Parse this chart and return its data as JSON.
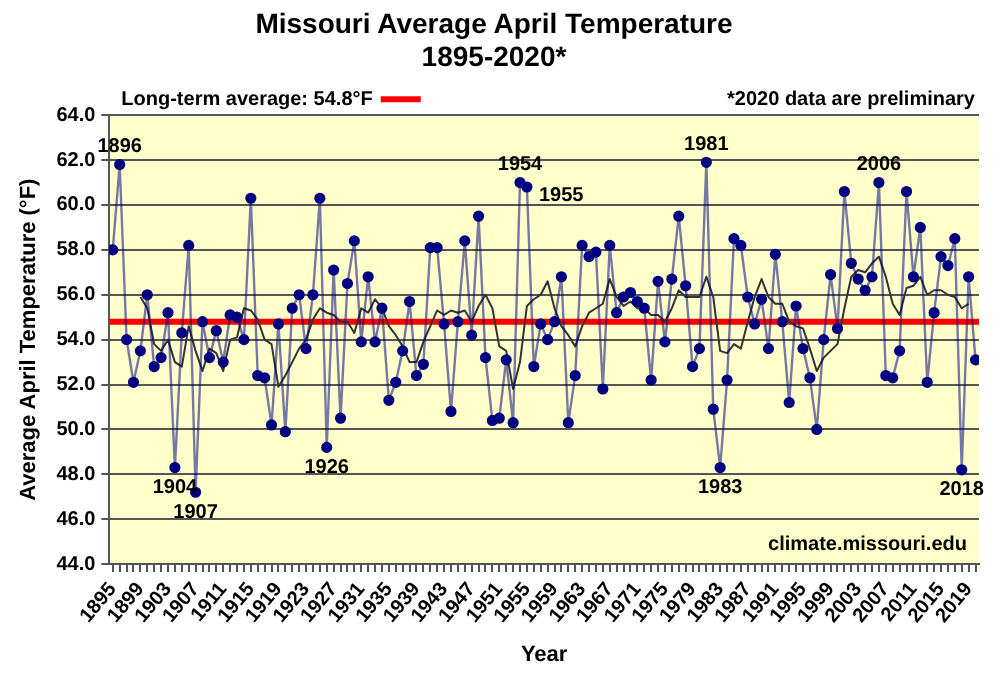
{
  "chart_data": {
    "type": "line",
    "title": "Missouri Average April Temperature",
    "subtitle": "1895-2020*",
    "xlabel": "Year",
    "ylabel": "Average April Temperature (°F)",
    "x": [
      1895,
      1896,
      1897,
      1898,
      1899,
      1900,
      1901,
      1902,
      1903,
      1904,
      1905,
      1906,
      1907,
      1908,
      1909,
      1910,
      1911,
      1912,
      1913,
      1914,
      1915,
      1916,
      1917,
      1918,
      1919,
      1920,
      1921,
      1922,
      1923,
      1924,
      1925,
      1926,
      1927,
      1928,
      1929,
      1930,
      1931,
      1932,
      1933,
      1934,
      1935,
      1936,
      1937,
      1938,
      1939,
      1940,
      1941,
      1942,
      1943,
      1944,
      1945,
      1946,
      1947,
      1948,
      1949,
      1950,
      1951,
      1952,
      1953,
      1954,
      1955,
      1956,
      1957,
      1958,
      1959,
      1960,
      1961,
      1962,
      1963,
      1964,
      1965,
      1966,
      1967,
      1968,
      1969,
      1970,
      1971,
      1972,
      1973,
      1974,
      1975,
      1976,
      1977,
      1978,
      1979,
      1980,
      1981,
      1982,
      1983,
      1984,
      1985,
      1986,
      1987,
      1988,
      1989,
      1990,
      1991,
      1992,
      1993,
      1994,
      1995,
      1996,
      1997,
      1998,
      1999,
      2000,
      2001,
      2002,
      2003,
      2004,
      2005,
      2006,
      2007,
      2008,
      2009,
      2010,
      2011,
      2012,
      2013,
      2014,
      2015,
      2016,
      2017,
      2018,
      2019,
      2020
    ],
    "series": [
      {
        "color": "#000080",
        "marker": "circle",
        "values": [
          58.0,
          61.8,
          54.0,
          52.1,
          53.5,
          56.0,
          52.8,
          53.2,
          55.2,
          48.3,
          54.3,
          58.2,
          47.2,
          54.8,
          53.2,
          54.4,
          53.0,
          55.1,
          55.0,
          54.0,
          60.3,
          52.4,
          52.3,
          50.2,
          54.7,
          49.9,
          55.4,
          56.0,
          53.6,
          56.0,
          60.3,
          49.2,
          57.1,
          50.5,
          56.5,
          58.4,
          53.9,
          56.8,
          53.9,
          55.4,
          51.3,
          52.1,
          53.5,
          55.7,
          52.4,
          52.9,
          58.1,
          58.1,
          54.7,
          50.8,
          54.8,
          58.4,
          54.2,
          59.5,
          53.2,
          50.4,
          50.5,
          53.1,
          50.3,
          61.0,
          60.8,
          52.8,
          54.7,
          54.0,
          54.8,
          56.8,
          50.3,
          52.4,
          58.2,
          57.7,
          57.9,
          51.8,
          58.2,
          55.2,
          55.9,
          56.1,
          55.7,
          55.4,
          52.2,
          56.6,
          53.9,
          56.7,
          59.5,
          56.4,
          52.8,
          53.6,
          61.9,
          50.9,
          48.3,
          52.2,
          58.5,
          58.2,
          55.9,
          54.7,
          55.8,
          53.6,
          57.8,
          54.8,
          51.2,
          55.5,
          53.6,
          52.3,
          50.0,
          54.0,
          56.9,
          54.5,
          60.6,
          57.4,
          56.7,
          56.2,
          56.8,
          61.0,
          52.4,
          52.3,
          53.5,
          60.6,
          56.8,
          59.0,
          52.1,
          55.2,
          57.7,
          57.3,
          58.5,
          48.2,
          56.8,
          53.1
        ]
      },
      {
        "color": "#333333",
        "marker": "none",
        "x": [
          1899,
          1900,
          1901,
          1902,
          1903,
          1904,
          1905,
          1906,
          1907,
          1908,
          1909,
          1910,
          1911,
          1912,
          1913,
          1914,
          1915,
          1916,
          1917,
          1918,
          1919,
          1920,
          1921,
          1922,
          1923,
          1924,
          1925,
          1926,
          1927,
          1928,
          1929,
          1930,
          1931,
          1932,
          1933,
          1934,
          1935,
          1936,
          1937,
          1938,
          1939,
          1940,
          1941,
          1942,
          1943,
          1944,
          1945,
          1946,
          1947,
          1948,
          1949,
          1950,
          1951,
          1952,
          1953,
          1954,
          1955,
          1956,
          1957,
          1958,
          1959,
          1960,
          1961,
          1962,
          1963,
          1964,
          1965,
          1966,
          1967,
          1968,
          1969,
          1970,
          1971,
          1972,
          1973,
          1974,
          1975,
          1976,
          1977,
          1978,
          1979,
          1980,
          1981,
          1982,
          1983,
          1984,
          1985,
          1986,
          1987,
          1988,
          1989,
          1990,
          1991,
          1992,
          1993,
          1994,
          1995,
          1996,
          1997,
          1998,
          1999,
          2000,
          2001,
          2002,
          2003,
          2004,
          2005,
          2006,
          2007,
          2008,
          2009,
          2010,
          2011,
          2012,
          2013,
          2014,
          2015,
          2016,
          2017,
          2018,
          2019
        ],
        "values": [
          55.9,
          55.4,
          53.8,
          53.5,
          54.0,
          53.0,
          52.8,
          54.6,
          53.5,
          52.6,
          53.6,
          53.4,
          52.6,
          54.0,
          54.1,
          55.4,
          55.3,
          54.9,
          54.0,
          53.8,
          51.9,
          52.4,
          53.0,
          53.6,
          54.0,
          54.9,
          55.4,
          55.2,
          55.1,
          54.8,
          54.8,
          54.3,
          55.4,
          55.2,
          55.8,
          55.4,
          54.6,
          54.2,
          53.7,
          53.0,
          53.0,
          53.9,
          54.6,
          55.3,
          55.1,
          55.3,
          55.2,
          55.3,
          54.8,
          55.5,
          56.0,
          55.4,
          53.7,
          53.5,
          51.8,
          53.0,
          55.5,
          55.8,
          56.0,
          56.6,
          55.4,
          54.6,
          54.2,
          53.7,
          54.6,
          55.2,
          55.4,
          55.6,
          56.7,
          55.9,
          55.5,
          55.7,
          55.4,
          55.4,
          55.1,
          55.1,
          54.8,
          55.4,
          56.2,
          55.9,
          55.9,
          55.9,
          56.8,
          55.9,
          53.5,
          53.4,
          53.8,
          53.6,
          54.8,
          55.9,
          56.7,
          55.9,
          55.6,
          55.6,
          54.8,
          54.6,
          54.5,
          53.6,
          52.6,
          53.2,
          53.5,
          53.8,
          55.4,
          56.8,
          57.1,
          57.0,
          57.4,
          57.7,
          56.8,
          55.6,
          55.1,
          56.3,
          56.4,
          56.8,
          56.0,
          56.2,
          56.2,
          56.0,
          55.9,
          55.4,
          55.6
        ]
      }
    ],
    "xlim": [
      1894.5,
      2020.5
    ],
    "xticks": [
      1895,
      {
        "value": 1896,
        "label": null
      },
      {
        "value": 1897,
        "label": null
      },
      {
        "value": 1898,
        "label": null
      },
      1899,
      {
        "value": 1900,
        "label": null
      },
      {
        "value": 1901,
        "label": null
      },
      {
        "value": 1902,
        "label": null
      },
      1903,
      {
        "value": 1904,
        "label": null
      },
      {
        "value": 1905,
        "label": null
      },
      {
        "value": 1906,
        "label": null
      },
      1907,
      {
        "value": 1908,
        "label": null
      },
      {
        "value": 1909,
        "label": null
      },
      {
        "value": 1910,
        "label": null
      },
      1911,
      {
        "value": 1912,
        "label": null
      },
      {
        "value": 1913,
        "label": null
      },
      {
        "value": 1914,
        "label": null
      },
      1915,
      {
        "value": 1916,
        "label": null
      },
      {
        "value": 1917,
        "label": null
      },
      {
        "value": 1918,
        "label": null
      },
      1919,
      {
        "value": 1920,
        "label": null
      },
      {
        "value": 1921,
        "label": null
      },
      {
        "value": 1922,
        "label": null
      },
      1923,
      {
        "value": 1924,
        "label": null
      },
      {
        "value": 1925,
        "label": null
      },
      {
        "value": 1926,
        "label": null
      },
      1927,
      {
        "value": 1928,
        "label": null
      },
      {
        "value": 1929,
        "label": null
      },
      {
        "value": 1930,
        "label": null
      },
      1931,
      {
        "value": 1932,
        "label": null
      },
      {
        "value": 1933,
        "label": null
      },
      {
        "value": 1934,
        "label": null
      },
      1935,
      {
        "value": 1936,
        "label": null
      },
      {
        "value": 1937,
        "label": null
      },
      {
        "value": 1938,
        "label": null
      },
      1939,
      {
        "value": 1940,
        "label": null
      },
      {
        "value": 1941,
        "label": null
      },
      {
        "value": 1942,
        "label": null
      },
      1943,
      {
        "value": 1944,
        "label": null
      },
      {
        "value": 1945,
        "label": null
      },
      {
        "value": 1946,
        "label": null
      },
      1947,
      {
        "value": 1948,
        "label": null
      },
      {
        "value": 1949,
        "label": null
      },
      {
        "value": 1950,
        "label": null
      },
      1951,
      {
        "value": 1952,
        "label": null
      },
      {
        "value": 1953,
        "label": null
      },
      {
        "value": 1954,
        "label": null
      },
      1955,
      {
        "value": 1956,
        "label": null
      },
      {
        "value": 1957,
        "label": null
      },
      {
        "value": 1958,
        "label": null
      },
      1959,
      {
        "value": 1960,
        "label": null
      },
      {
        "value": 1961,
        "label": null
      },
      {
        "value": 1962,
        "label": null
      },
      1963,
      {
        "value": 1964,
        "label": null
      },
      {
        "value": 1965,
        "label": null
      },
      {
        "value": 1966,
        "label": null
      },
      1967,
      {
        "value": 1968,
        "label": null
      },
      {
        "value": 1969,
        "label": null
      },
      {
        "value": 1970,
        "label": null
      },
      1971,
      {
        "value": 1972,
        "label": null
      },
      {
        "value": 1973,
        "label": null
      },
      {
        "value": 1974,
        "label": null
      },
      1975,
      {
        "value": 1976,
        "label": null
      },
      {
        "value": 1977,
        "label": null
      },
      {
        "value": 1978,
        "label": null
      },
      1979,
      {
        "value": 1980,
        "label": null
      },
      {
        "value": 1981,
        "label": null
      },
      {
        "value": 1982,
        "label": null
      },
      1983,
      {
        "value": 1984,
        "label": null
      },
      {
        "value": 1985,
        "label": null
      },
      {
        "value": 1986,
        "label": null
      },
      1987,
      {
        "value": 1988,
        "label": null
      },
      {
        "value": 1989,
        "label": null
      },
      {
        "value": 1990,
        "label": null
      },
      1991,
      {
        "value": 1992,
        "label": null
      },
      {
        "value": 1993,
        "label": null
      },
      {
        "value": 1994,
        "label": null
      },
      1995,
      {
        "value": 1996,
        "label": null
      },
      {
        "value": 1997,
        "label": null
      },
      {
        "value": 1998,
        "label": null
      },
      1999,
      {
        "value": 2000,
        "label": null
      },
      {
        "value": 2001,
        "label": null
      },
      {
        "value": 2002,
        "label": null
      },
      2003,
      {
        "value": 2004,
        "label": null
      },
      {
        "value": 2005,
        "label": null
      },
      {
        "value": 2006,
        "label": null
      },
      2007,
      {
        "value": 2008,
        "label": null
      },
      {
        "value": 2009,
        "label": null
      },
      {
        "value": 2010,
        "label": null
      },
      2011,
      {
        "value": 2012,
        "label": null
      },
      {
        "value": 2013,
        "label": null
      },
      {
        "value": 2014,
        "label": null
      },
      2015,
      {
        "value": 2016,
        "label": null
      },
      {
        "value": 2017,
        "label": null
      },
      {
        "value": 2018,
        "label": null
      },
      2019,
      {
        "value": 2020,
        "label": null
      }
    ],
    "ylim": [
      44,
      64
    ],
    "yticks": [
      {
        "value": 44,
        "label": "44.0"
      },
      {
        "value": 46,
        "label": "46.0"
      },
      {
        "value": 48,
        "label": "48.0"
      },
      {
        "value": 50,
        "label": "50.0"
      },
      {
        "value": 52,
        "label": "52.0"
      },
      {
        "value": 54,
        "label": "54.0"
      },
      {
        "value": 56,
        "label": "56.0"
      },
      {
        "value": 58,
        "label": "58.0"
      },
      {
        "value": 60,
        "label": "60.0"
      },
      {
        "value": 62,
        "label": "62.0"
      },
      {
        "value": 64,
        "label": "64.0"
      }
    ],
    "grid": "y",
    "legend": "top left",
    "ref_lines": [
      {
        "axis": "y",
        "value": 54.8,
        "label": "Long-term average: 54.8°F",
        "color": "#ff0000"
      }
    ],
    "annotations": [
      "*2020 data are preliminary",
      "climate.missouri.edu",
      {
        "text": "1896",
        "x": 1896,
        "y": 61.8
      },
      {
        "text": "1904",
        "x": 1904,
        "y": 48.3
      },
      {
        "text": "1907",
        "x": 1907,
        "y": 47.2
      },
      {
        "text": "1926",
        "x": 1926,
        "y": 49.2
      },
      {
        "text": "1954",
        "x": 1954,
        "y": 61.0
      },
      {
        "text": "1955",
        "x": 1955,
        "y": 60.8
      },
      {
        "text": "1981",
        "x": 1981,
        "y": 61.9
      },
      {
        "text": "1983",
        "x": 1983,
        "y": 48.3
      },
      {
        "text": "2006",
        "x": 2006,
        "y": 61.0
      },
      {
        "text": "2018",
        "x": 2018,
        "y": 48.2
      }
    ]
  }
}
